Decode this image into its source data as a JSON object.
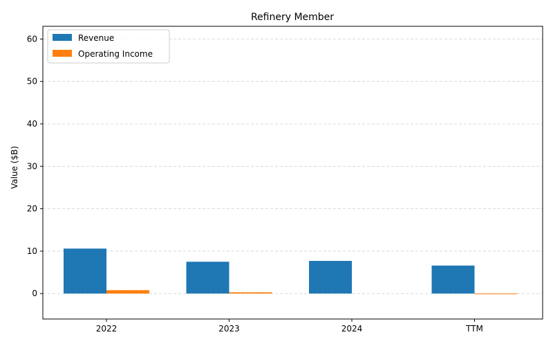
{
  "chart_data": {
    "type": "bar",
    "title": "Refinery Member",
    "xlabel": "",
    "ylabel": "Value ($B)",
    "categories": [
      "2022",
      "2023",
      "2024",
      "TTM"
    ],
    "series": [
      {
        "name": "Revenue",
        "color": "#1f77b4",
        "values": [
          10.6,
          7.5,
          7.7,
          6.6
        ]
      },
      {
        "name": "Operating Income",
        "color": "#ff7f0e",
        "values": [
          0.8,
          0.3,
          0.0,
          -0.1
        ]
      }
    ],
    "ylim": [
      -6,
      63
    ],
    "yticks": [
      0,
      10,
      20,
      30,
      40,
      50,
      60
    ],
    "grid": true,
    "legend_position": "top-left"
  }
}
